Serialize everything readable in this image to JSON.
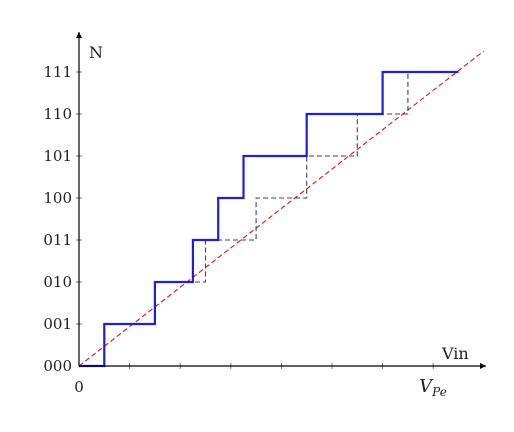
{
  "chart_data": {
    "type": "line",
    "title": "",
    "xlabel": "Vin",
    "ylabel": "N",
    "x_origin_label": "0",
    "x_end_label": "V_{Pe}",
    "x_end_label_base": "V",
    "x_end_label_sub": "Pe",
    "x_tick_count": 8,
    "xlim": [
      0,
      8
    ],
    "ylim": [
      0,
      7.5
    ],
    "y_tick_labels": [
      "000",
      "001",
      "010",
      "011",
      "100",
      "101",
      "110",
      "111"
    ],
    "series": [
      {
        "style": "solid",
        "color": "#1f1fd6",
        "points": [
          [
            0,
            0
          ],
          [
            0.5,
            0
          ],
          [
            0.5,
            1
          ],
          [
            1.5,
            1
          ],
          [
            1.5,
            2
          ],
          [
            2.25,
            2
          ],
          [
            2.25,
            3
          ],
          [
            2.75,
            3
          ],
          [
            2.75,
            4
          ],
          [
            3.25,
            4
          ],
          [
            3.25,
            5
          ],
          [
            4.5,
            5
          ],
          [
            4.5,
            6
          ],
          [
            6,
            6
          ],
          [
            6,
            7
          ],
          [
            7.5,
            7
          ]
        ]
      },
      {
        "style": "dashed",
        "color": "#444444",
        "points": [
          [
            0,
            0
          ],
          [
            0.5,
            0
          ],
          [
            0.5,
            1
          ],
          [
            1.5,
            1
          ],
          [
            1.5,
            2
          ],
          [
            2.5,
            2
          ],
          [
            2.5,
            3
          ],
          [
            3.5,
            3
          ],
          [
            3.5,
            4
          ],
          [
            4.5,
            4
          ],
          [
            4.5,
            5
          ],
          [
            5.5,
            5
          ],
          [
            5.5,
            6
          ],
          [
            6.5,
            6
          ],
          [
            6.5,
            7
          ]
        ]
      },
      {
        "style": "dashed",
        "color": "#e01010",
        "points": [
          [
            0,
            0
          ],
          [
            8,
            7.5
          ]
        ]
      }
    ]
  }
}
